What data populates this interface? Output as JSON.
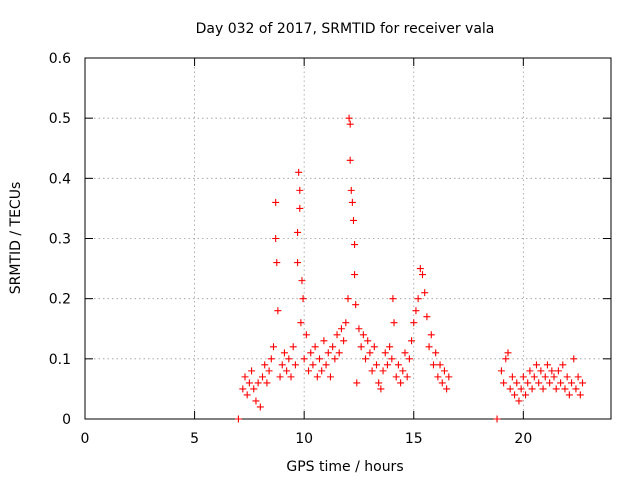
{
  "chart_data": {
    "type": "scatter",
    "title": "Day 032 of 2017, SRMTID for receiver vala",
    "xlabel": "GPS time / hours",
    "ylabel": "SRMTID / TECUs",
    "xlim": [
      0,
      24
    ],
    "ylim": [
      0,
      0.6
    ],
    "xticks": [
      0,
      5,
      10,
      15,
      20
    ],
    "xtick_labels": [
      "0",
      "5",
      "10",
      "15",
      "20"
    ],
    "yticks": [
      0,
      0.1,
      0.2,
      0.3,
      0.4,
      0.5,
      0.6
    ],
    "ytick_labels": [
      "0",
      "0.1",
      "0.2",
      "0.3",
      "0.4",
      "0.5",
      "0.6"
    ],
    "grid": true,
    "marker": "+",
    "color": "#ff0000",
    "series": [
      {
        "name": "SRMTID",
        "points": [
          [
            7.0,
            0.0
          ],
          [
            7.2,
            0.05
          ],
          [
            7.3,
            0.07
          ],
          [
            7.4,
            0.04
          ],
          [
            7.5,
            0.06
          ],
          [
            7.6,
            0.08
          ],
          [
            7.7,
            0.05
          ],
          [
            7.8,
            0.03
          ],
          [
            7.9,
            0.06
          ],
          [
            8.0,
            0.02
          ],
          [
            8.1,
            0.07
          ],
          [
            8.2,
            0.09
          ],
          [
            8.3,
            0.06
          ],
          [
            8.4,
            0.08
          ],
          [
            8.5,
            0.1
          ],
          [
            8.6,
            0.12
          ],
          [
            8.7,
            0.36
          ],
          [
            8.7,
            0.3
          ],
          [
            8.75,
            0.26
          ],
          [
            8.8,
            0.18
          ],
          [
            8.9,
            0.07
          ],
          [
            9.0,
            0.09
          ],
          [
            9.1,
            0.11
          ],
          [
            9.2,
            0.08
          ],
          [
            9.3,
            0.1
          ],
          [
            9.4,
            0.07
          ],
          [
            9.5,
            0.12
          ],
          [
            9.6,
            0.09
          ],
          [
            9.7,
            0.31
          ],
          [
            9.7,
            0.26
          ],
          [
            9.75,
            0.41
          ],
          [
            9.8,
            0.38
          ],
          [
            9.8,
            0.35
          ],
          [
            9.85,
            0.16
          ],
          [
            9.9,
            0.23
          ],
          [
            9.95,
            0.2
          ],
          [
            10.0,
            0.1
          ],
          [
            10.1,
            0.14
          ],
          [
            10.2,
            0.08
          ],
          [
            10.3,
            0.11
          ],
          [
            10.4,
            0.09
          ],
          [
            10.5,
            0.12
          ],
          [
            10.6,
            0.07
          ],
          [
            10.7,
            0.1
          ],
          [
            10.8,
            0.08
          ],
          [
            10.9,
            0.13
          ],
          [
            11.0,
            0.09
          ],
          [
            11.1,
            0.11
          ],
          [
            11.2,
            0.07
          ],
          [
            11.3,
            0.12
          ],
          [
            11.4,
            0.1
          ],
          [
            11.5,
            0.14
          ],
          [
            11.6,
            0.11
          ],
          [
            11.7,
            0.15
          ],
          [
            11.8,
            0.13
          ],
          [
            11.9,
            0.16
          ],
          [
            12.0,
            0.2
          ],
          [
            12.05,
            0.5
          ],
          [
            12.1,
            0.49
          ],
          [
            12.1,
            0.43
          ],
          [
            12.15,
            0.38
          ],
          [
            12.2,
            0.36
          ],
          [
            12.25,
            0.33
          ],
          [
            12.3,
            0.29
          ],
          [
            12.3,
            0.24
          ],
          [
            12.35,
            0.19
          ],
          [
            12.4,
            0.06
          ],
          [
            12.5,
            0.15
          ],
          [
            12.6,
            0.12
          ],
          [
            12.7,
            0.14
          ],
          [
            12.8,
            0.1
          ],
          [
            12.9,
            0.13
          ],
          [
            13.0,
            0.11
          ],
          [
            13.1,
            0.08
          ],
          [
            13.2,
            0.12
          ],
          [
            13.3,
            0.09
          ],
          [
            13.4,
            0.06
          ],
          [
            13.5,
            0.05
          ],
          [
            13.6,
            0.08
          ],
          [
            13.7,
            0.11
          ],
          [
            13.8,
            0.09
          ],
          [
            13.9,
            0.12
          ],
          [
            14.0,
            0.1
          ],
          [
            14.05,
            0.2
          ],
          [
            14.1,
            0.16
          ],
          [
            14.2,
            0.07
          ],
          [
            14.3,
            0.09
          ],
          [
            14.4,
            0.06
          ],
          [
            14.5,
            0.08
          ],
          [
            14.6,
            0.11
          ],
          [
            14.7,
            0.07
          ],
          [
            14.8,
            0.1
          ],
          [
            14.9,
            0.13
          ],
          [
            15.0,
            0.16
          ],
          [
            15.1,
            0.18
          ],
          [
            15.2,
            0.2
          ],
          [
            15.3,
            0.25
          ],
          [
            15.4,
            0.24
          ],
          [
            15.5,
            0.21
          ],
          [
            15.6,
            0.17
          ],
          [
            15.7,
            0.12
          ],
          [
            15.8,
            0.14
          ],
          [
            15.9,
            0.09
          ],
          [
            16.0,
            0.11
          ],
          [
            16.1,
            0.07
          ],
          [
            16.2,
            0.09
          ],
          [
            16.3,
            0.06
          ],
          [
            16.4,
            0.08
          ],
          [
            16.5,
            0.05
          ],
          [
            16.6,
            0.07
          ],
          [
            18.8,
            0.0
          ],
          [
            19.0,
            0.08
          ],
          [
            19.1,
            0.06
          ],
          [
            19.2,
            0.1
          ],
          [
            19.3,
            0.11
          ],
          [
            19.4,
            0.05
          ],
          [
            19.5,
            0.07
          ],
          [
            19.6,
            0.04
          ],
          [
            19.7,
            0.06
          ],
          [
            19.8,
            0.03
          ],
          [
            19.9,
            0.05
          ],
          [
            20.0,
            0.07
          ],
          [
            20.1,
            0.04
          ],
          [
            20.2,
            0.06
          ],
          [
            20.3,
            0.08
          ],
          [
            20.4,
            0.05
          ],
          [
            20.5,
            0.07
          ],
          [
            20.6,
            0.09
          ],
          [
            20.7,
            0.06
          ],
          [
            20.8,
            0.08
          ],
          [
            20.9,
            0.05
          ],
          [
            21.0,
            0.07
          ],
          [
            21.1,
            0.09
          ],
          [
            21.2,
            0.06
          ],
          [
            21.3,
            0.08
          ],
          [
            21.4,
            0.07
          ],
          [
            21.5,
            0.05
          ],
          [
            21.6,
            0.08
          ],
          [
            21.7,
            0.06
          ],
          [
            21.8,
            0.09
          ],
          [
            21.9,
            0.05
          ],
          [
            22.0,
            0.07
          ],
          [
            22.1,
            0.04
          ],
          [
            22.2,
            0.06
          ],
          [
            22.3,
            0.1
          ],
          [
            22.4,
            0.05
          ],
          [
            22.5,
            0.07
          ],
          [
            22.6,
            0.04
          ],
          [
            22.7,
            0.06
          ]
        ]
      }
    ]
  }
}
